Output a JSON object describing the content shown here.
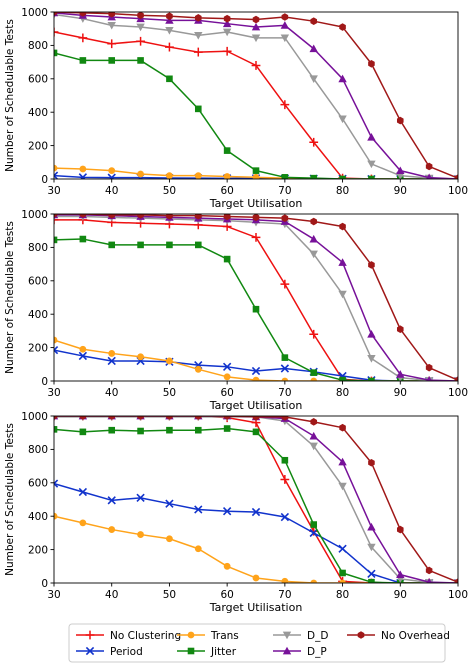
{
  "chart_data": [
    {
      "type": "line",
      "xlabel": "Target Utilisation",
      "ylabel": "Number of Schedulable Tests",
      "xlim": [
        30,
        100
      ],
      "ylim": [
        0,
        1000
      ],
      "xticks": [
        "30",
        "40",
        "50",
        "60",
        "70",
        "80",
        "90",
        "100"
      ],
      "yticks": [
        "0",
        "200",
        "400",
        "600",
        "800",
        "1000"
      ],
      "x": [
        30,
        35,
        40,
        45,
        50,
        55,
        60,
        65,
        70,
        75,
        80,
        85,
        90,
        95,
        100
      ],
      "series": [
        {
          "name": "No Clustering",
          "color": "#ee1111",
          "marker": "plus",
          "values": [
            880,
            845,
            810,
            825,
            790,
            760,
            765,
            680,
            445,
            220,
            5,
            0,
            0,
            0,
            0
          ]
        },
        {
          "name": "Period",
          "color": "#1133cc",
          "marker": "x",
          "values": [
            20,
            10,
            8,
            8,
            6,
            5,
            4,
            4,
            3,
            2,
            1,
            0,
            0,
            0,
            0
          ]
        },
        {
          "name": "Trans",
          "color": "#ffa31a",
          "marker": "circle",
          "values": [
            65,
            60,
            50,
            30,
            20,
            20,
            15,
            10,
            5,
            2,
            0,
            0,
            0,
            0,
            0
          ]
        },
        {
          "name": "Jitter",
          "color": "#118811",
          "marker": "square",
          "values": [
            755,
            710,
            710,
            710,
            600,
            420,
            170,
            50,
            10,
            5,
            0,
            0,
            0,
            0,
            0
          ]
        },
        {
          "name": "D_D",
          "color": "#999999",
          "marker": "triangle-down",
          "values": [
            985,
            960,
            920,
            910,
            890,
            860,
            880,
            845,
            845,
            600,
            360,
            90,
            20,
            5,
            0
          ]
        },
        {
          "name": "D_P",
          "color": "#771199",
          "marker": "triangle-up",
          "values": [
            995,
            980,
            970,
            960,
            950,
            950,
            930,
            910,
            920,
            780,
            600,
            250,
            50,
            8,
            0
          ]
        },
        {
          "name": "No Overhead",
          "color": "#a01818",
          "marker": "hexagon",
          "values": [
            1000,
            995,
            990,
            980,
            975,
            965,
            960,
            955,
            970,
            945,
            910,
            690,
            350,
            75,
            5
          ]
        }
      ]
    },
    {
      "type": "line",
      "xlabel": "Target Utilisation",
      "ylabel": "Number of Schedulable Tests",
      "xlim": [
        30,
        100
      ],
      "ylim": [
        0,
        1000
      ],
      "xticks": [
        "30",
        "40",
        "50",
        "60",
        "70",
        "80",
        "90",
        "100"
      ],
      "yticks": [
        "0",
        "200",
        "400",
        "600",
        "800",
        "1000"
      ],
      "x": [
        30,
        35,
        40,
        45,
        50,
        55,
        60,
        65,
        70,
        75,
        80,
        85,
        90,
        95,
        100
      ],
      "series": [
        {
          "name": "No Clustering",
          "color": "#ee1111",
          "marker": "plus",
          "values": [
            965,
            965,
            950,
            945,
            940,
            935,
            925,
            860,
            580,
            280,
            10,
            0,
            0,
            0,
            0
          ]
        },
        {
          "name": "Period",
          "color": "#1133cc",
          "marker": "x",
          "values": [
            185,
            150,
            120,
            120,
            115,
            95,
            85,
            60,
            75,
            55,
            30,
            5,
            0,
            0,
            0
          ]
        },
        {
          "name": "Trans",
          "color": "#ffa31a",
          "marker": "circle",
          "values": [
            245,
            190,
            165,
            145,
            120,
            70,
            25,
            5,
            0,
            0,
            0,
            0,
            0,
            0,
            0
          ]
        },
        {
          "name": "Jitter",
          "color": "#118811",
          "marker": "square",
          "values": [
            845,
            850,
            815,
            815,
            815,
            815,
            730,
            430,
            140,
            50,
            5,
            0,
            0,
            0,
            0
          ]
        },
        {
          "name": "D_D",
          "color": "#999999",
          "marker": "triangle-down",
          "values": [
            985,
            985,
            980,
            975,
            970,
            965,
            960,
            950,
            940,
            760,
            520,
            135,
            20,
            3,
            0
          ]
        },
        {
          "name": "D_P",
          "color": "#771199",
          "marker": "triangle-up",
          "values": [
            995,
            995,
            990,
            985,
            980,
            975,
            970,
            965,
            955,
            850,
            710,
            280,
            40,
            5,
            0
          ]
        },
        {
          "name": "No Overhead",
          "color": "#a01818",
          "marker": "hexagon",
          "values": [
            1000,
            1000,
            995,
            995,
            990,
            990,
            985,
            980,
            975,
            955,
            925,
            695,
            310,
            80,
            5
          ]
        }
      ]
    },
    {
      "type": "line",
      "xlabel": "Target Utilisation",
      "ylabel": "Number of Schedulable Tests",
      "xlim": [
        30,
        100
      ],
      "ylim": [
        0,
        1000
      ],
      "xticks": [
        "30",
        "40",
        "50",
        "60",
        "70",
        "80",
        "90",
        "100"
      ],
      "yticks": [
        "0",
        "200",
        "400",
        "600",
        "800",
        "1000"
      ],
      "x": [
        30,
        35,
        40,
        45,
        50,
        55,
        60,
        65,
        70,
        75,
        80,
        85,
        90,
        95,
        100
      ],
      "series": [
        {
          "name": "No Clustering",
          "color": "#ee1111",
          "marker": "plus",
          "values": [
            1000,
            1000,
            1000,
            1000,
            1000,
            1000,
            990,
            960,
            620,
            310,
            10,
            0,
            0,
            0,
            0
          ]
        },
        {
          "name": "Period",
          "color": "#1133cc",
          "marker": "x",
          "values": [
            595,
            545,
            495,
            510,
            475,
            440,
            430,
            425,
            395,
            300,
            205,
            55,
            0,
            0,
            0
          ]
        },
        {
          "name": "Trans",
          "color": "#ffa31a",
          "marker": "circle",
          "values": [
            400,
            360,
            320,
            290,
            265,
            205,
            100,
            30,
            10,
            0,
            0,
            0,
            0,
            0,
            0
          ]
        },
        {
          "name": "Jitter",
          "color": "#118811",
          "marker": "square",
          "values": [
            920,
            905,
            915,
            910,
            915,
            915,
            925,
            905,
            735,
            350,
            60,
            5,
            0,
            0,
            0
          ]
        },
        {
          "name": "D_D",
          "color": "#999999",
          "marker": "triangle-down",
          "values": [
            995,
            995,
            995,
            995,
            995,
            995,
            995,
            995,
            970,
            820,
            580,
            215,
            25,
            3,
            0
          ]
        },
        {
          "name": "D_P",
          "color": "#771199",
          "marker": "triangle-up",
          "values": [
            1000,
            1000,
            1000,
            1000,
            1000,
            1000,
            1000,
            995,
            985,
            880,
            725,
            335,
            50,
            5,
            0
          ]
        },
        {
          "name": "No Overhead",
          "color": "#a01818",
          "marker": "hexagon",
          "values": [
            1000,
            1000,
            1000,
            1000,
            1000,
            1000,
            1000,
            995,
            995,
            965,
            930,
            720,
            320,
            75,
            5
          ]
        }
      ]
    }
  ],
  "legend": {
    "placement": "bottom",
    "columns": [
      [
        "No Clustering",
        "Period"
      ],
      [
        "Trans",
        "Jitter"
      ],
      [
        "D_D",
        "D_P"
      ],
      [
        "No Overhead"
      ]
    ]
  }
}
